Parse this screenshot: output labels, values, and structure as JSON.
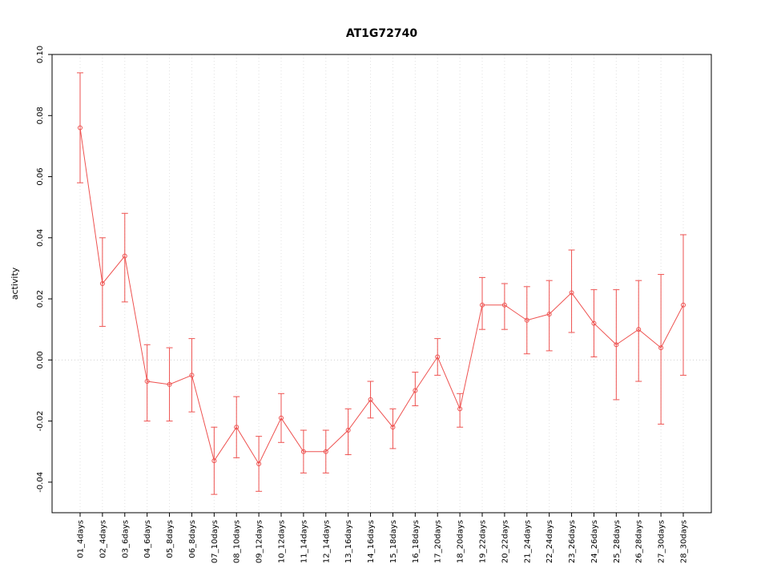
{
  "chart": {
    "title": "AT1G72740",
    "ylabel": "activity"
  },
  "chart_data": {
    "type": "line",
    "title": "AT1G72740",
    "xlabel": "",
    "ylabel": "activity",
    "ylim": [
      -0.05,
      0.1
    ],
    "yticks": [
      -0.04,
      -0.02,
      0.0,
      0.02,
      0.04,
      0.06,
      0.08,
      0.1
    ],
    "grid": "vertical dotted gridlines at each category; dotted horizontal line at y=0",
    "legend": "none",
    "series_color": "#ee5250",
    "grid_color": "#e0e0e0",
    "zero_line_color": "#d0d0d0",
    "point_style": "open-circle",
    "error_bars": true,
    "categories": [
      "01_4days",
      "02_4days",
      "03_6days",
      "04_6days",
      "05_8days",
      "06_8days",
      "07_10days",
      "08_10days",
      "09_12days",
      "10_12days",
      "11_14days",
      "12_14days",
      "13_16days",
      "14_16days",
      "15_18days",
      "16_18days",
      "17_20days",
      "18_20days",
      "19_22days",
      "20_22days",
      "21_24days",
      "22_24days",
      "23_26days",
      "24_26days",
      "25_28days",
      "26_28days",
      "27_30days",
      "28_30days"
    ],
    "values": [
      0.076,
      0.025,
      0.034,
      -0.007,
      -0.008,
      -0.005,
      -0.033,
      -0.022,
      -0.034,
      -0.019,
      -0.03,
      -0.03,
      -0.023,
      -0.013,
      -0.022,
      -0.01,
      0.001,
      -0.016,
      0.018,
      0.018,
      0.013,
      0.015,
      0.022,
      0.012,
      0.005,
      0.01,
      0.004,
      0.018
    ],
    "upper": [
      0.094,
      0.04,
      0.048,
      0.005,
      0.004,
      0.007,
      -0.022,
      -0.012,
      -0.025,
      -0.011,
      -0.023,
      -0.023,
      -0.016,
      -0.007,
      -0.016,
      -0.004,
      0.007,
      -0.011,
      0.027,
      0.025,
      0.024,
      0.026,
      0.036,
      0.023,
      0.023,
      0.026,
      0.028,
      0.041
    ],
    "lower": [
      0.058,
      0.011,
      0.019,
      -0.02,
      -0.02,
      -0.017,
      -0.044,
      -0.032,
      -0.043,
      -0.027,
      -0.037,
      -0.037,
      -0.031,
      -0.019,
      -0.029,
      -0.015,
      -0.005,
      -0.022,
      0.01,
      0.01,
      0.002,
      0.003,
      0.009,
      0.001,
      -0.013,
      -0.007,
      -0.021,
      -0.005
    ]
  }
}
